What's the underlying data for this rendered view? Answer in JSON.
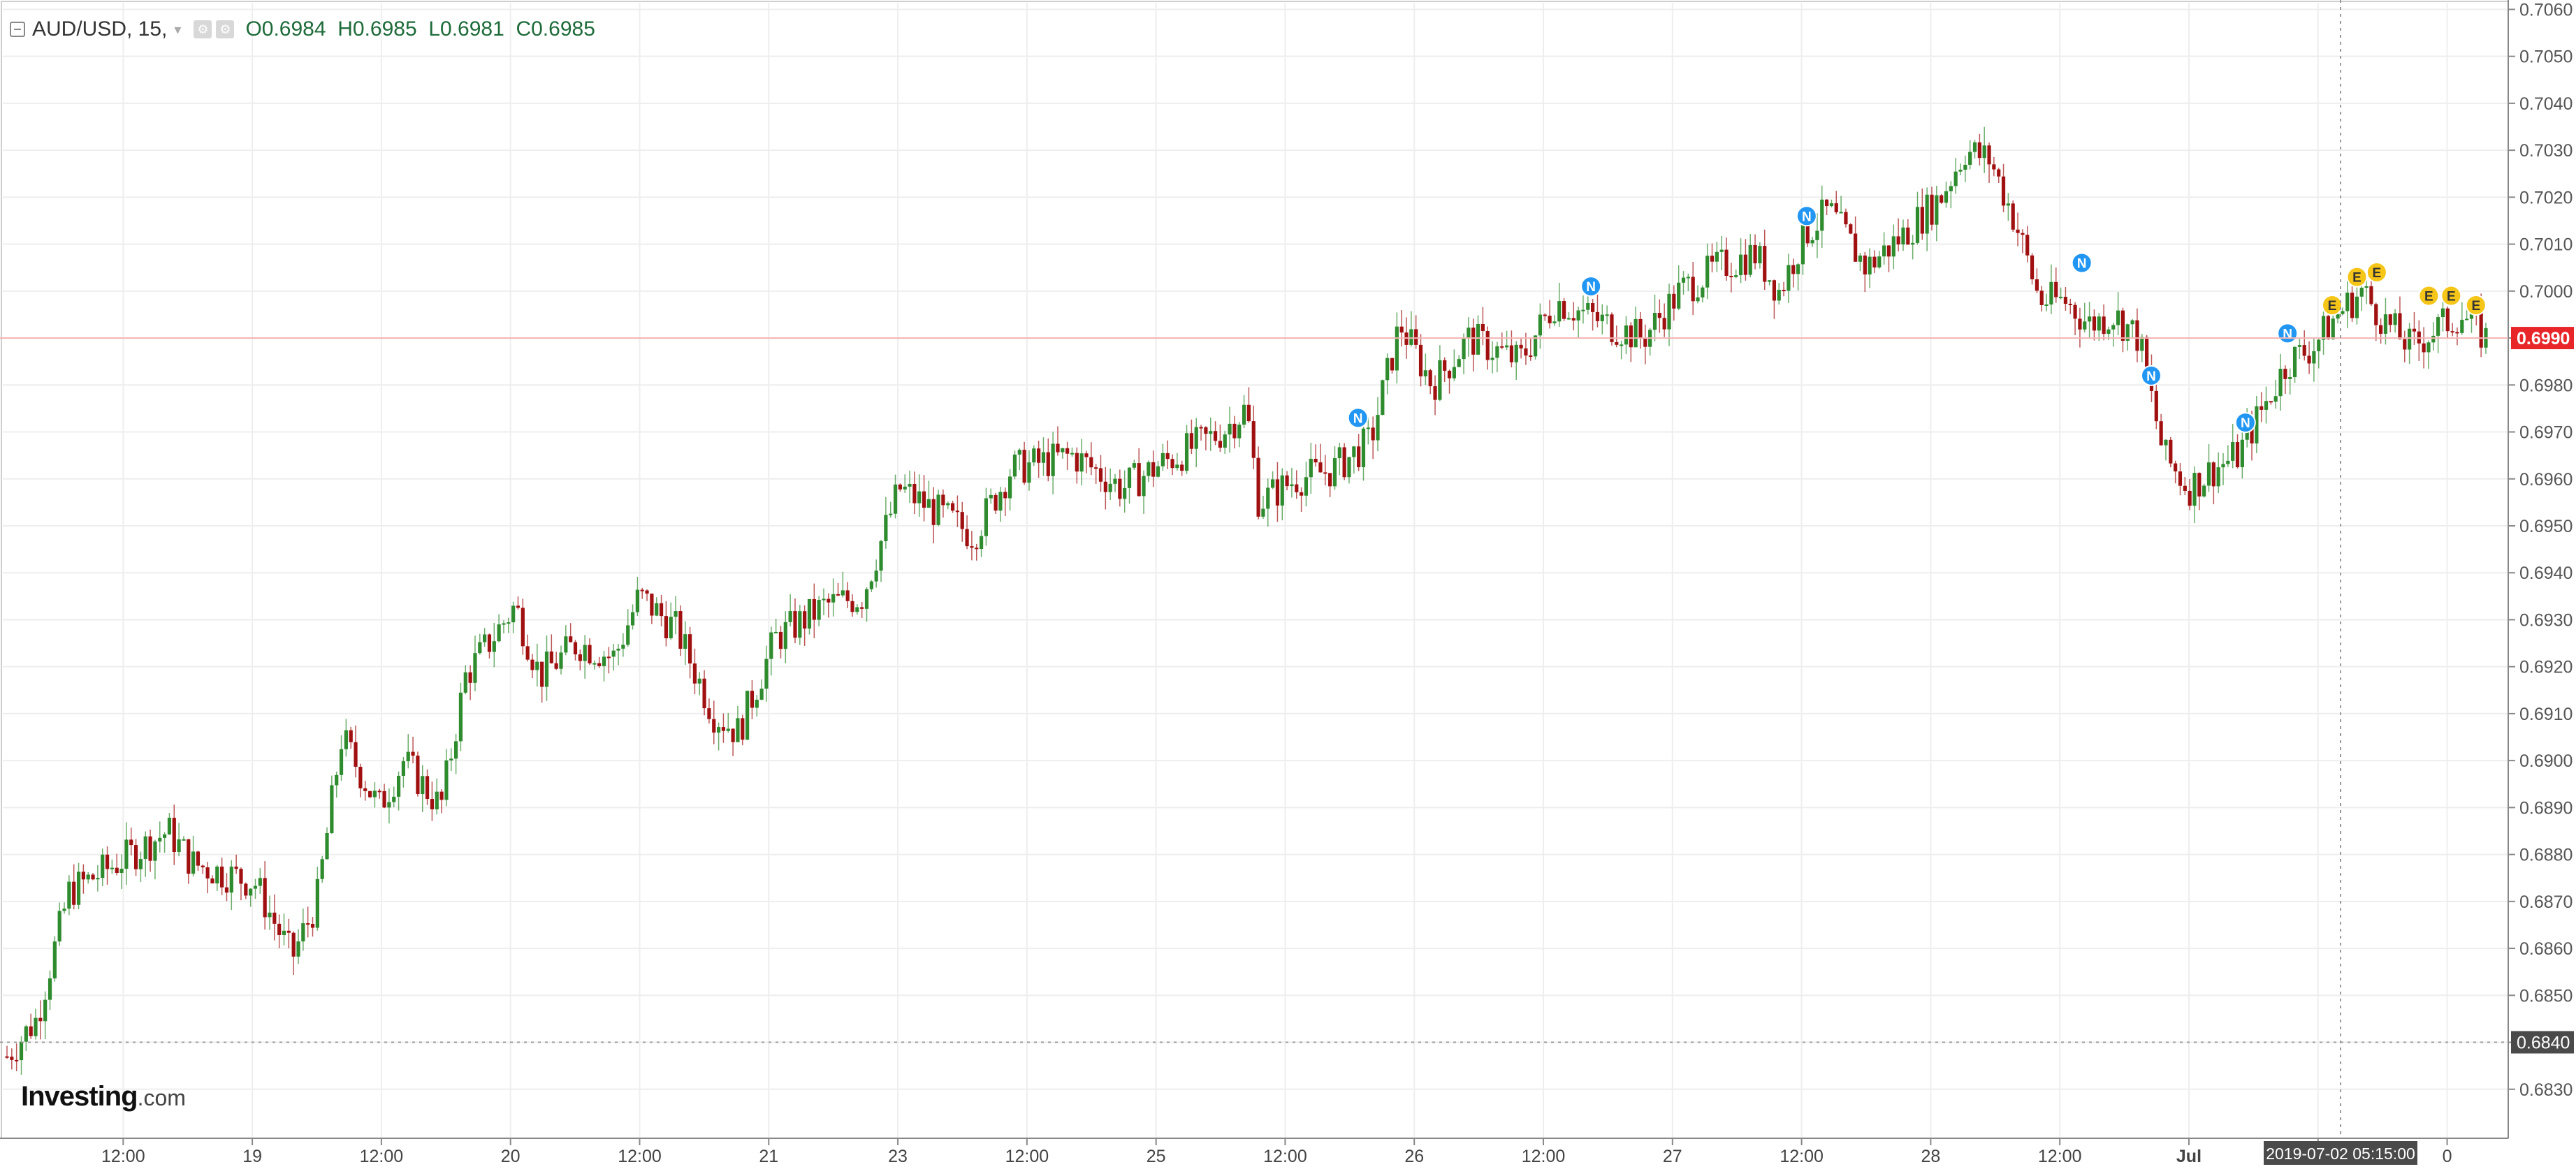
{
  "legend": {
    "symbol": "AUD/USD, 15,",
    "open_label": "O",
    "open": "0.6984",
    "high_label": "H",
    "high": "0.6985",
    "low_label": "L",
    "low": "0.6981",
    "close_label": "C",
    "close": "0.6985",
    "icons": [
      "settings-icon",
      "settings-icon"
    ]
  },
  "brand": {
    "name": "Investing",
    "suffix": ".com"
  },
  "colors": {
    "up": "#2e8b2e",
    "down": "#a01010",
    "grid": "#eeeeee",
    "axis": "#888888",
    "current_price_line": "#f4b4b4",
    "current_price_bg": "#e8262a",
    "crosshair_bg": "#4a4a4a",
    "news_marker": "#2196f3",
    "event_marker": "#f5c518"
  },
  "chart_data": {
    "type": "candlestick",
    "instrument": "AUD/USD",
    "interval": "15",
    "y_axis": {
      "ticks": [
        "0.6830",
        "0.6840",
        "0.6850",
        "0.6860",
        "0.6870",
        "0.6880",
        "0.6890",
        "0.6900",
        "0.6910",
        "0.6920",
        "0.6930",
        "0.6940",
        "0.6950",
        "0.6960",
        "0.6970",
        "0.6980",
        "0.6990",
        "0.7000",
        "0.7010",
        "0.7020",
        "0.7030",
        "0.7040",
        "0.7050",
        "0.7060"
      ],
      "range": [
        0.682,
        0.7062
      ]
    },
    "x_axis": {
      "ticks": [
        "12:00",
        "19",
        "12:00",
        "20",
        "12:00",
        "21",
        "23",
        "12:00",
        "25",
        "12:00",
        "26",
        "12:00",
        "27",
        "12:00",
        "28",
        "12:00",
        "Jul",
        "12:00",
        "0"
      ]
    },
    "current_price": "0.6990",
    "crosshair_price": "0.6840",
    "crosshair_time": "2019-07-02 05:15:00",
    "price_path": [
      [
        0,
        0.6837
      ],
      [
        0.012,
        0.6845
      ],
      [
        0.025,
        0.6872
      ],
      [
        0.05,
        0.688
      ],
      [
        0.065,
        0.6885
      ],
      [
        0.075,
        0.6878
      ],
      [
        0.1,
        0.6874
      ],
      [
        0.115,
        0.6858
      ],
      [
        0.125,
        0.687
      ],
      [
        0.135,
        0.6905
      ],
      [
        0.15,
        0.689
      ],
      [
        0.16,
        0.69
      ],
      [
        0.175,
        0.689
      ],
      [
        0.185,
        0.6918
      ],
      [
        0.205,
        0.6933
      ],
      [
        0.215,
        0.6918
      ],
      [
        0.23,
        0.6925
      ],
      [
        0.245,
        0.6922
      ],
      [
        0.255,
        0.6935
      ],
      [
        0.27,
        0.6928
      ],
      [
        0.285,
        0.691
      ],
      [
        0.295,
        0.6906
      ],
      [
        0.31,
        0.6926
      ],
      [
        0.33,
        0.6933
      ],
      [
        0.345,
        0.6935
      ],
      [
        0.36,
        0.6958
      ],
      [
        0.375,
        0.6953
      ],
      [
        0.39,
        0.6948
      ],
      [
        0.405,
        0.6962
      ],
      [
        0.43,
        0.6965
      ],
      [
        0.45,
        0.6958
      ],
      [
        0.465,
        0.6963
      ],
      [
        0.49,
        0.697
      ],
      [
        0.5,
        0.6975
      ],
      [
        0.505,
        0.6955
      ],
      [
        0.52,
        0.696
      ],
      [
        0.535,
        0.6962
      ],
      [
        0.55,
        0.6968
      ],
      [
        0.562,
        0.6993
      ],
      [
        0.575,
        0.698
      ],
      [
        0.59,
        0.699
      ],
      [
        0.61,
        0.6985
      ],
      [
        0.625,
        0.6998
      ],
      [
        0.645,
        0.6993
      ],
      [
        0.66,
        0.699
      ],
      [
        0.675,
        0.7
      ],
      [
        0.69,
        0.7005
      ],
      [
        0.705,
        0.7008
      ],
      [
        0.715,
        0.7
      ],
      [
        0.725,
        0.7012
      ],
      [
        0.735,
        0.7017
      ],
      [
        0.75,
        0.7005
      ],
      [
        0.765,
        0.7012
      ],
      [
        0.78,
        0.702
      ],
      [
        0.79,
        0.703
      ],
      [
        0.8,
        0.7028
      ],
      [
        0.81,
        0.7015
      ],
      [
        0.82,
        0.6998
      ],
      [
        0.83,
        0.6998
      ],
      [
        0.84,
        0.6993
      ],
      [
        0.85,
        0.6995
      ],
      [
        0.86,
        0.699
      ],
      [
        0.87,
        0.6965
      ],
      [
        0.88,
        0.6958
      ],
      [
        0.89,
        0.6962
      ],
      [
        0.9,
        0.6965
      ],
      [
        0.91,
        0.6975
      ],
      [
        0.92,
        0.6985
      ],
      [
        0.93,
        0.6988
      ],
      [
        0.94,
        0.6995
      ],
      [
        0.95,
        0.7
      ],
      [
        0.96,
        0.6993
      ],
      [
        0.97,
        0.6988
      ],
      [
        0.98,
        0.6992
      ],
      [
        0.99,
        0.6995
      ],
      [
        1.0,
        0.699
      ]
    ],
    "markers": [
      {
        "label": "N",
        "kind": "news",
        "t": 0.545,
        "price": 0.6973
      },
      {
        "label": "N",
        "kind": "news",
        "t": 0.639,
        "price": 0.7001
      },
      {
        "label": "N",
        "kind": "news",
        "t": 0.726,
        "price": 0.7016
      },
      {
        "label": "N",
        "kind": "news",
        "t": 0.837,
        "price": 0.7006
      },
      {
        "label": "N",
        "kind": "news",
        "t": 0.865,
        "price": 0.6982
      },
      {
        "label": "N",
        "kind": "news",
        "t": 0.903,
        "price": 0.6972
      },
      {
        "label": "N",
        "kind": "news",
        "t": 0.92,
        "price": 0.6991
      },
      {
        "label": "E",
        "kind": "event",
        "t": 0.938,
        "price": 0.6997
      },
      {
        "label": "E",
        "kind": "event",
        "t": 0.948,
        "price": 0.7003
      },
      {
        "label": "E",
        "kind": "event",
        "t": 0.956,
        "price": 0.7004
      },
      {
        "label": "E",
        "kind": "event",
        "t": 0.977,
        "price": 0.6999
      },
      {
        "label": "E",
        "kind": "event",
        "t": 0.986,
        "price": 0.6999
      },
      {
        "label": "E",
        "kind": "event",
        "t": 0.996,
        "price": 0.6997
      }
    ]
  }
}
